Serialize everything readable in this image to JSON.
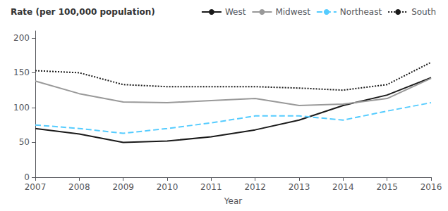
{
  "chart_data": {
    "type": "line",
    "ylabel": "Rate (per 100,000 population)",
    "xlabel": "Year",
    "x": [
      2007,
      2008,
      2009,
      2010,
      2011,
      2012,
      2013,
      2014,
      2015,
      2016
    ],
    "series": [
      {
        "name": "West",
        "color": "#1a1a1a",
        "line_style": "solid",
        "values": [
          70,
          62,
          50,
          52,
          58,
          68,
          82,
          103,
          118,
          143
        ]
      },
      {
        "name": "Midwest",
        "color": "#999999",
        "line_style": "solid",
        "values": [
          138,
          120,
          108,
          107,
          110,
          113,
          103,
          105,
          113,
          142
        ]
      },
      {
        "name": "Northeast",
        "color": "#55ccff",
        "line_style": "dashed",
        "values": [
          75,
          70,
          63,
          70,
          78,
          88,
          88,
          82,
          95,
          107
        ]
      },
      {
        "name": "South",
        "color": "#1a1a1a",
        "line_style": "dotted",
        "values": [
          153,
          150,
          133,
          130,
          130,
          130,
          128,
          125,
          133,
          165
        ]
      }
    ],
    "xlim": [
      2007,
      2016
    ],
    "xticks": [
      2007,
      2008,
      2009,
      2010,
      2011,
      2012,
      2013,
      2014,
      2015,
      2016
    ],
    "ylim": [
      0,
      210
    ],
    "yticks": [
      0,
      50,
      100,
      150,
      200
    ],
    "grid": false,
    "legend": "upper right"
  }
}
